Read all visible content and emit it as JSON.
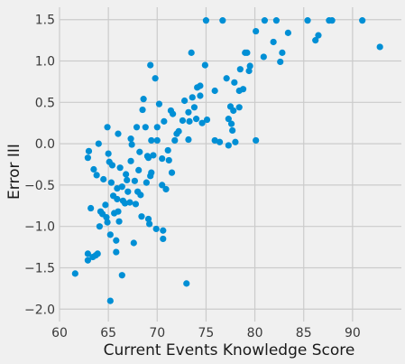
{
  "chart_data": {
    "type": "scatter",
    "title": "",
    "xlabel": "Current Events Knowledge Score",
    "ylabel": "Error III",
    "xlim": [
      60,
      95
    ],
    "ylim": [
      -2.15,
      1.65
    ],
    "xticks": [
      60,
      65,
      70,
      75,
      80,
      85,
      90
    ],
    "yticks": [
      -2.0,
      -1.5,
      -1.0,
      -0.5,
      0.0,
      0.5,
      1.0,
      1.5
    ],
    "xtick_labels": [
      "60",
      "65",
      "70",
      "75",
      "80",
      "85",
      "90"
    ],
    "ytick_labels": [
      "−2.0",
      "−1.5",
      "−1.0",
      "−0.5",
      "0.0",
      "0.5",
      "1.0",
      "1.5"
    ],
    "grid": true,
    "legend": "none",
    "marker_color": "#008fd5",
    "background_color": "#f0f0f0",
    "grid_color": "#cbcbcb",
    "series": [
      {
        "points": [
          [
            61.6,
            -1.57
          ],
          [
            62.9,
            -1.41
          ],
          [
            62.9,
            -1.33
          ],
          [
            63.2,
            -0.78
          ],
          [
            63.4,
            -1.37
          ],
          [
            63.7,
            -1.35
          ],
          [
            63.9,
            -1.33
          ],
          [
            62.9,
            -0.17
          ],
          [
            63.0,
            -0.09
          ],
          [
            63.5,
            -0.31
          ],
          [
            63.8,
            -0.38
          ],
          [
            64.0,
            0.0
          ],
          [
            64.1,
            -1.0
          ],
          [
            64.2,
            -0.82
          ],
          [
            64.4,
            -0.85
          ],
          [
            64.5,
            -0.43
          ],
          [
            64.7,
            -0.74
          ],
          [
            64.8,
            -0.89
          ],
          [
            64.9,
            -0.95
          ],
          [
            64.9,
            0.2
          ],
          [
            65.0,
            -0.12
          ],
          [
            65.1,
            -0.22
          ],
          [
            65.2,
            -1.9
          ],
          [
            65.2,
            -1.1
          ],
          [
            65.3,
            -0.47
          ],
          [
            65.4,
            -0.26
          ],
          [
            65.5,
            -0.63
          ],
          [
            65.6,
            -0.84
          ],
          [
            65.8,
            -1.17
          ],
          [
            65.8,
            -1.31
          ],
          [
            65.9,
            -0.54
          ],
          [
            65.9,
            -0.67
          ],
          [
            66.0,
            -0.82
          ],
          [
            66.0,
            0.12
          ],
          [
            66.1,
            -0.94
          ],
          [
            66.2,
            -0.29
          ],
          [
            66.4,
            -1.59
          ],
          [
            66.4,
            -0.52
          ],
          [
            66.5,
            -0.69
          ],
          [
            66.7,
            -0.72
          ],
          [
            66.8,
            -0.37
          ],
          [
            66.9,
            -0.44
          ],
          [
            67.0,
            -0.58
          ],
          [
            67.2,
            -0.71
          ],
          [
            67.3,
            -0.21
          ],
          [
            67.3,
            0.06
          ],
          [
            67.4,
            -0.01
          ],
          [
            67.6,
            -1.2
          ],
          [
            67.7,
            -0.45
          ],
          [
            67.8,
            -0.73
          ],
          [
            67.9,
            0.2
          ],
          [
            68.0,
            -0.58
          ],
          [
            68.1,
            -0.32
          ],
          [
            68.2,
            -0.1
          ],
          [
            68.3,
            -0.62
          ],
          [
            68.4,
            -0.88
          ],
          [
            68.5,
            0.41
          ],
          [
            68.6,
            0.54
          ],
          [
            68.8,
            0.2
          ],
          [
            68.9,
            -0.47
          ],
          [
            69.0,
            -0.15
          ],
          [
            69.1,
            -0.17
          ],
          [
            69.1,
            -0.91
          ],
          [
            69.2,
            -0.97
          ],
          [
            69.3,
            -0.39
          ],
          [
            69.3,
            0.95
          ],
          [
            69.4,
            -0.35
          ],
          [
            69.4,
            0.04
          ],
          [
            69.6,
            -0.14
          ],
          [
            69.8,
            0.79
          ],
          [
            69.9,
            -1.03
          ],
          [
            70.0,
            0.04
          ],
          [
            70.0,
            0.2
          ],
          [
            70.2,
            0.48
          ],
          [
            70.5,
            -0.5
          ],
          [
            70.5,
            -0.18
          ],
          [
            70.6,
            -1.05
          ],
          [
            70.6,
            -1.15
          ],
          [
            70.7,
            0.27
          ],
          [
            70.9,
            -0.55
          ],
          [
            71.1,
            -0.08
          ],
          [
            71.2,
            -0.2
          ],
          [
            71.4,
            0.4
          ],
          [
            71.5,
            -0.35
          ],
          [
            71.6,
            0.36
          ],
          [
            71.8,
            0.04
          ],
          [
            72.0,
            0.12
          ],
          [
            72.2,
            0.15
          ],
          [
            72.6,
            0.28
          ],
          [
            72.8,
            0.52
          ],
          [
            73.0,
            -1.69
          ],
          [
            73.2,
            0.38
          ],
          [
            73.2,
            0.05
          ],
          [
            73.3,
            0.27
          ],
          [
            73.5,
            1.1
          ],
          [
            73.6,
            0.56
          ],
          [
            73.8,
            0.44
          ],
          [
            74.0,
            0.3
          ],
          [
            74.1,
            0.68
          ],
          [
            74.4,
            0.58
          ],
          [
            74.4,
            0.7
          ],
          [
            74.6,
            0.25
          ],
          [
            74.9,
            0.95
          ],
          [
            75.0,
            1.49
          ],
          [
            75.1,
            0.29
          ],
          [
            75.9,
            0.64
          ],
          [
            75.9,
            0.04
          ],
          [
            76.4,
            0.02
          ],
          [
            76.7,
            1.49
          ],
          [
            77.1,
            0.79
          ],
          [
            77.3,
            -0.02
          ],
          [
            77.3,
            0.3
          ],
          [
            77.5,
            0.45
          ],
          [
            77.6,
            0.24
          ],
          [
            77.7,
            0.16
          ],
          [
            77.8,
            0.4
          ],
          [
            77.9,
            0.74
          ],
          [
            78.0,
            0.02
          ],
          [
            78.4,
            0.44
          ],
          [
            78.4,
            0.64
          ],
          [
            78.5,
            0.9
          ],
          [
            78.8,
            0.66
          ],
          [
            79.0,
            1.1
          ],
          [
            79.2,
            1.1
          ],
          [
            79.4,
            0.88
          ],
          [
            79.5,
            0.94
          ],
          [
            80.1,
            0.04
          ],
          [
            80.1,
            1.36
          ],
          [
            80.9,
            1.05
          ],
          [
            81.0,
            1.49
          ],
          [
            81.9,
            1.23
          ],
          [
            82.2,
            1.49
          ],
          [
            82.6,
            0.99
          ],
          [
            82.8,
            1.1
          ],
          [
            83.4,
            1.34
          ],
          [
            85.4,
            1.49
          ],
          [
            86.2,
            1.25
          ],
          [
            86.5,
            1.31
          ],
          [
            87.6,
            1.49
          ],
          [
            87.9,
            1.49
          ],
          [
            91.0,
            1.49
          ],
          [
            92.8,
            1.17
          ]
        ]
      }
    ]
  }
}
